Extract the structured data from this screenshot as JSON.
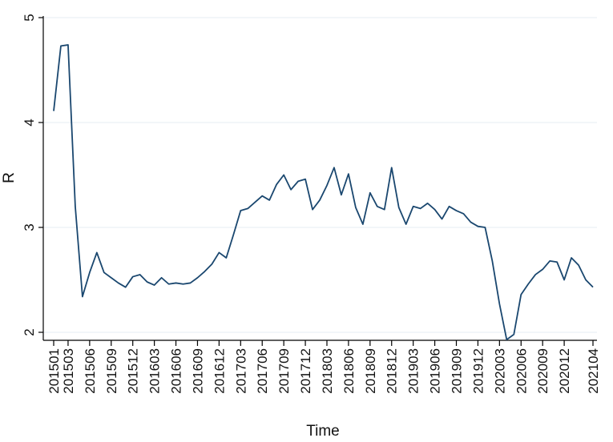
{
  "chart_data": {
    "type": "line",
    "xlabel": "Time",
    "ylabel": "R",
    "ylim": [
      2,
      5
    ],
    "yticks": [
      "2",
      "3",
      "4",
      "5"
    ],
    "grid": true,
    "x_tick_labels": [
      "201501",
      "201503",
      "201506",
      "201509",
      "201512",
      "201603",
      "201606",
      "201609",
      "201612",
      "201703",
      "201706",
      "201709",
      "201712",
      "201803",
      "201806",
      "201809",
      "201812",
      "201903",
      "201906",
      "201909",
      "201912",
      "202003",
      "202006",
      "202009",
      "202012",
      "202104"
    ],
    "x": [
      "201501",
      "201502",
      "201503",
      "201504",
      "201505",
      "201506",
      "201507",
      "201508",
      "201509",
      "201510",
      "201511",
      "201512",
      "201601",
      "201602",
      "201603",
      "201604",
      "201605",
      "201606",
      "201607",
      "201608",
      "201609",
      "201610",
      "201611",
      "201612",
      "201701",
      "201702",
      "201703",
      "201704",
      "201705",
      "201706",
      "201707",
      "201708",
      "201709",
      "201710",
      "201711",
      "201712",
      "201801",
      "201802",
      "201803",
      "201804",
      "201805",
      "201806",
      "201807",
      "201808",
      "201809",
      "201810",
      "201811",
      "201812",
      "201901",
      "201902",
      "201903",
      "201904",
      "201905",
      "201906",
      "201907",
      "201908",
      "201909",
      "201910",
      "201911",
      "201912",
      "202001",
      "202002",
      "202003",
      "202004",
      "202005",
      "202006",
      "202007",
      "202008",
      "202009",
      "202010",
      "202011",
      "202012",
      "202101",
      "202102",
      "202103",
      "202104"
    ],
    "series": [
      {
        "values": [
          4.11,
          4.73,
          4.74,
          3.2,
          2.34,
          2.57,
          2.76,
          2.57,
          2.52,
          2.47,
          2.43,
          2.53,
          2.55,
          2.48,
          2.45,
          2.52,
          2.46,
          2.47,
          2.46,
          2.47,
          2.52,
          2.58,
          2.65,
          2.76,
          2.71,
          2.93,
          3.16,
          3.18,
          3.24,
          3.3,
          3.26,
          3.41,
          3.5,
          3.36,
          3.44,
          3.46,
          3.17,
          3.26,
          3.4,
          3.57,
          3.31,
          3.51,
          3.19,
          3.03,
          3.33,
          3.2,
          3.17,
          3.57,
          3.19,
          3.03,
          3.2,
          3.18,
          3.23,
          3.17,
          3.08,
          3.2,
          3.16,
          3.13,
          3.05,
          3.01,
          3.0,
          2.68,
          2.27,
          1.93,
          1.98,
          2.36,
          2.46,
          2.55,
          2.6,
          2.68,
          2.67,
          2.5,
          2.71,
          2.64,
          2.5,
          2.43
        ]
      }
    ],
    "colors": {
      "line": "#1a476f",
      "grid": "#e6edf3",
      "axis": "#000000",
      "text": "#111111"
    }
  }
}
